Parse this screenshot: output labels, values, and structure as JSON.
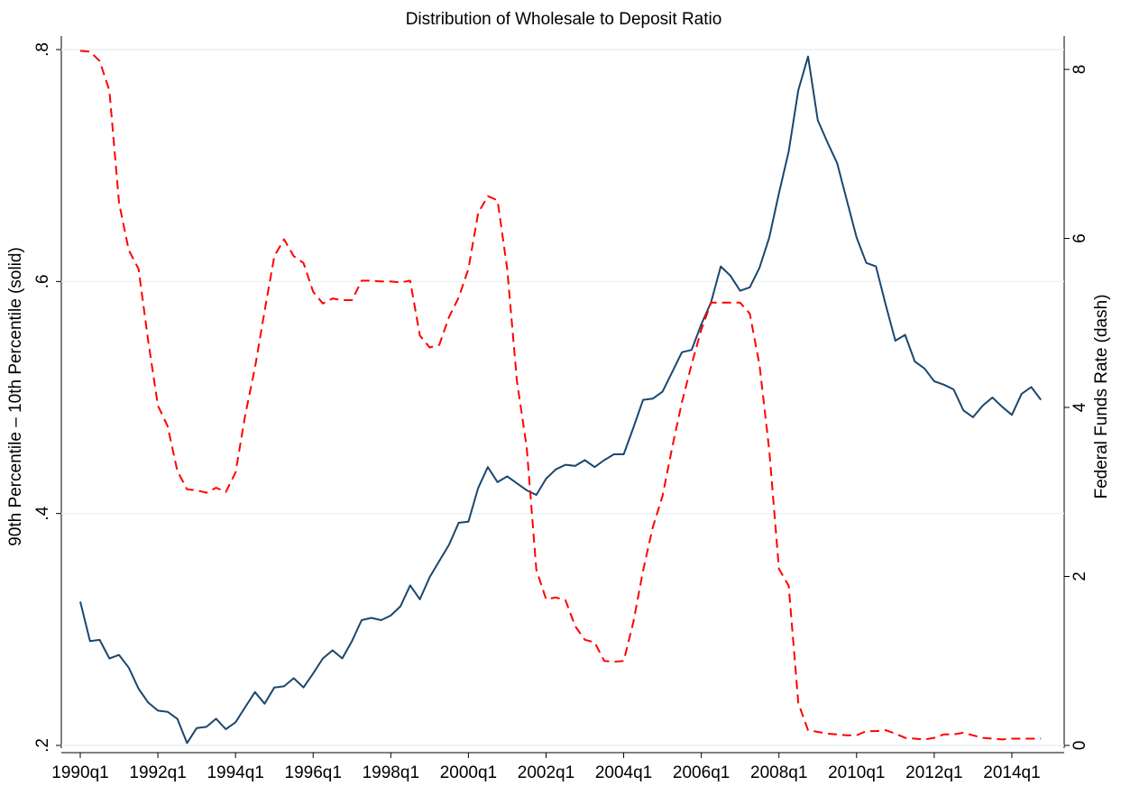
{
  "chart_data": {
    "type": "line",
    "title": "Distribution of Wholesale to Deposit Ratio",
    "ylabel": "90th Percentile – 10th Percentile (solid)",
    "y2label": "Federal Funds Rate (dash)",
    "categories": [
      "1990q1",
      null,
      null,
      null,
      null,
      null,
      null,
      null,
      "1992q1",
      null,
      null,
      null,
      null,
      null,
      null,
      null,
      "1994q1",
      null,
      null,
      null,
      null,
      null,
      null,
      null,
      "1996q1",
      null,
      null,
      null,
      null,
      null,
      null,
      null,
      "1998q1",
      null,
      null,
      null,
      null,
      null,
      null,
      null,
      "2000q1",
      null,
      null,
      null,
      null,
      null,
      null,
      null,
      "2002q1",
      null,
      null,
      null,
      null,
      null,
      null,
      null,
      "2004q1",
      null,
      null,
      null,
      null,
      null,
      null,
      null,
      "2006q1",
      null,
      null,
      null,
      null,
      null,
      null,
      null,
      "2008q1",
      null,
      null,
      null,
      null,
      null,
      null,
      null,
      "2010q1",
      null,
      null,
      null,
      null,
      null,
      null,
      null,
      "2012q1",
      null,
      null,
      null,
      null,
      null,
      null,
      null,
      "2014q1",
      null,
      null,
      null
    ],
    "series": [
      {
        "color": "#1a476f",
        "dash": false,
        "values": [
          0.324,
          0.29,
          0.291,
          0.275,
          0.278,
          0.267,
          0.249,
          0.237,
          0.23,
          0.229,
          0.223,
          0.202,
          0.215,
          0.216,
          0.223,
          0.214,
          0.22,
          0.233,
          0.246,
          0.236,
          0.25,
          0.251,
          0.258,
          0.25,
          0.262,
          0.275,
          0.282,
          0.275,
          0.29,
          0.308,
          0.31,
          0.308,
          0.312,
          0.32,
          0.338,
          0.326,
          0.345,
          0.359,
          0.373,
          0.392,
          0.393,
          0.422,
          0.44,
          0.427,
          0.432,
          0.426,
          0.42,
          0.416,
          0.43,
          0.438,
          0.442,
          0.441,
          0.446,
          0.44,
          0.446,
          0.451,
          0.451,
          0.474,
          0.498,
          0.499,
          0.505,
          0.522,
          0.539,
          0.541,
          0.563,
          0.582,
          0.613,
          0.605,
          0.592,
          0.595,
          0.612,
          0.638,
          0.676,
          0.712,
          0.765,
          0.794,
          0.739,
          0.72,
          0.702,
          0.67,
          0.638,
          0.616,
          0.613,
          0.58,
          0.549,
          0.554,
          0.531,
          0.525,
          0.514,
          0.511,
          0.507,
          0.489,
          0.483,
          0.493,
          0.5,
          0.492,
          0.485,
          0.503,
          0.509,
          0.498
        ]
      },
      {
        "color": "#ff0000",
        "dash": true,
        "axis": "y2",
        "values": [
          8.22,
          8.21,
          8.1,
          7.75,
          6.42,
          5.86,
          5.64,
          4.79,
          4.02,
          3.78,
          3.25,
          3.03,
          3.02,
          2.99,
          3.05,
          3.0,
          3.23,
          3.91,
          4.47,
          5.14,
          5.79,
          5.99,
          5.79,
          5.71,
          5.37,
          5.23,
          5.29,
          5.27,
          5.27,
          5.5,
          5.5,
          5.49,
          5.49,
          5.48,
          5.5,
          4.85,
          4.71,
          4.74,
          5.07,
          5.3,
          5.64,
          6.3,
          6.5,
          6.45,
          5.64,
          4.31,
          3.53,
          2.08,
          1.73,
          1.75,
          1.72,
          1.41,
          1.25,
          1.22,
          1.0,
          0.99,
          1.0,
          1.46,
          2.07,
          2.58,
          2.95,
          3.53,
          4.06,
          4.51,
          4.92,
          5.24,
          5.24,
          5.24,
          5.24,
          5.11,
          4.5,
          3.49,
          2.09,
          1.89,
          0.5,
          0.18,
          0.16,
          0.14,
          0.13,
          0.12,
          0.12,
          0.17,
          0.17,
          0.18,
          0.14,
          0.09,
          0.08,
          0.07,
          0.09,
          0.13,
          0.13,
          0.15,
          0.12,
          0.09,
          0.08,
          0.07,
          0.08,
          0.08,
          0.08,
          0.08
        ]
      }
    ],
    "ylim": [
      0.2,
      0.8
    ],
    "yticks": [
      {
        "value": 0.2,
        "label": ".2"
      },
      {
        "value": 0.4,
        "label": ".4"
      },
      {
        "value": 0.6,
        "label": ".6"
      },
      {
        "value": 0.8,
        "label": ".8"
      }
    ],
    "y2lim": [
      0,
      8.235
    ],
    "y2ticks": [
      0,
      2,
      4,
      6,
      8
    ],
    "grid": true
  }
}
